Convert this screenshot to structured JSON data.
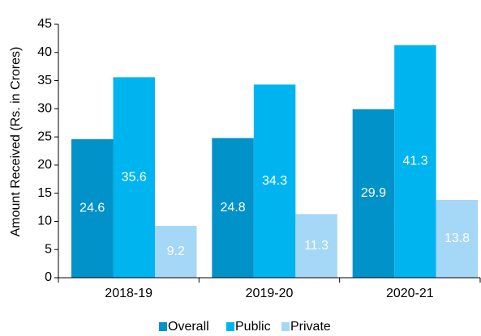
{
  "chart_data": {
    "type": "bar",
    "y_label": "Amount Received (Rs. in Crores)",
    "categories": [
      "2018-19",
      "2019-20",
      "2020-21"
    ],
    "series": [
      {
        "name": "Overall",
        "color": "#0092c9",
        "values": [
          24.6,
          24.8,
          29.9
        ]
      },
      {
        "name": "Public",
        "color": "#00b5ef",
        "values": [
          35.6,
          34.3,
          41.3
        ]
      },
      {
        "name": "Private",
        "color": "#a5d7f6",
        "values": [
          9.2,
          11.3,
          13.8
        ]
      }
    ],
    "ylim": [
      0,
      45
    ],
    "yticks": [
      0,
      5,
      10,
      15,
      20,
      25,
      30,
      35,
      40,
      45
    ],
    "legend": "bottom"
  }
}
